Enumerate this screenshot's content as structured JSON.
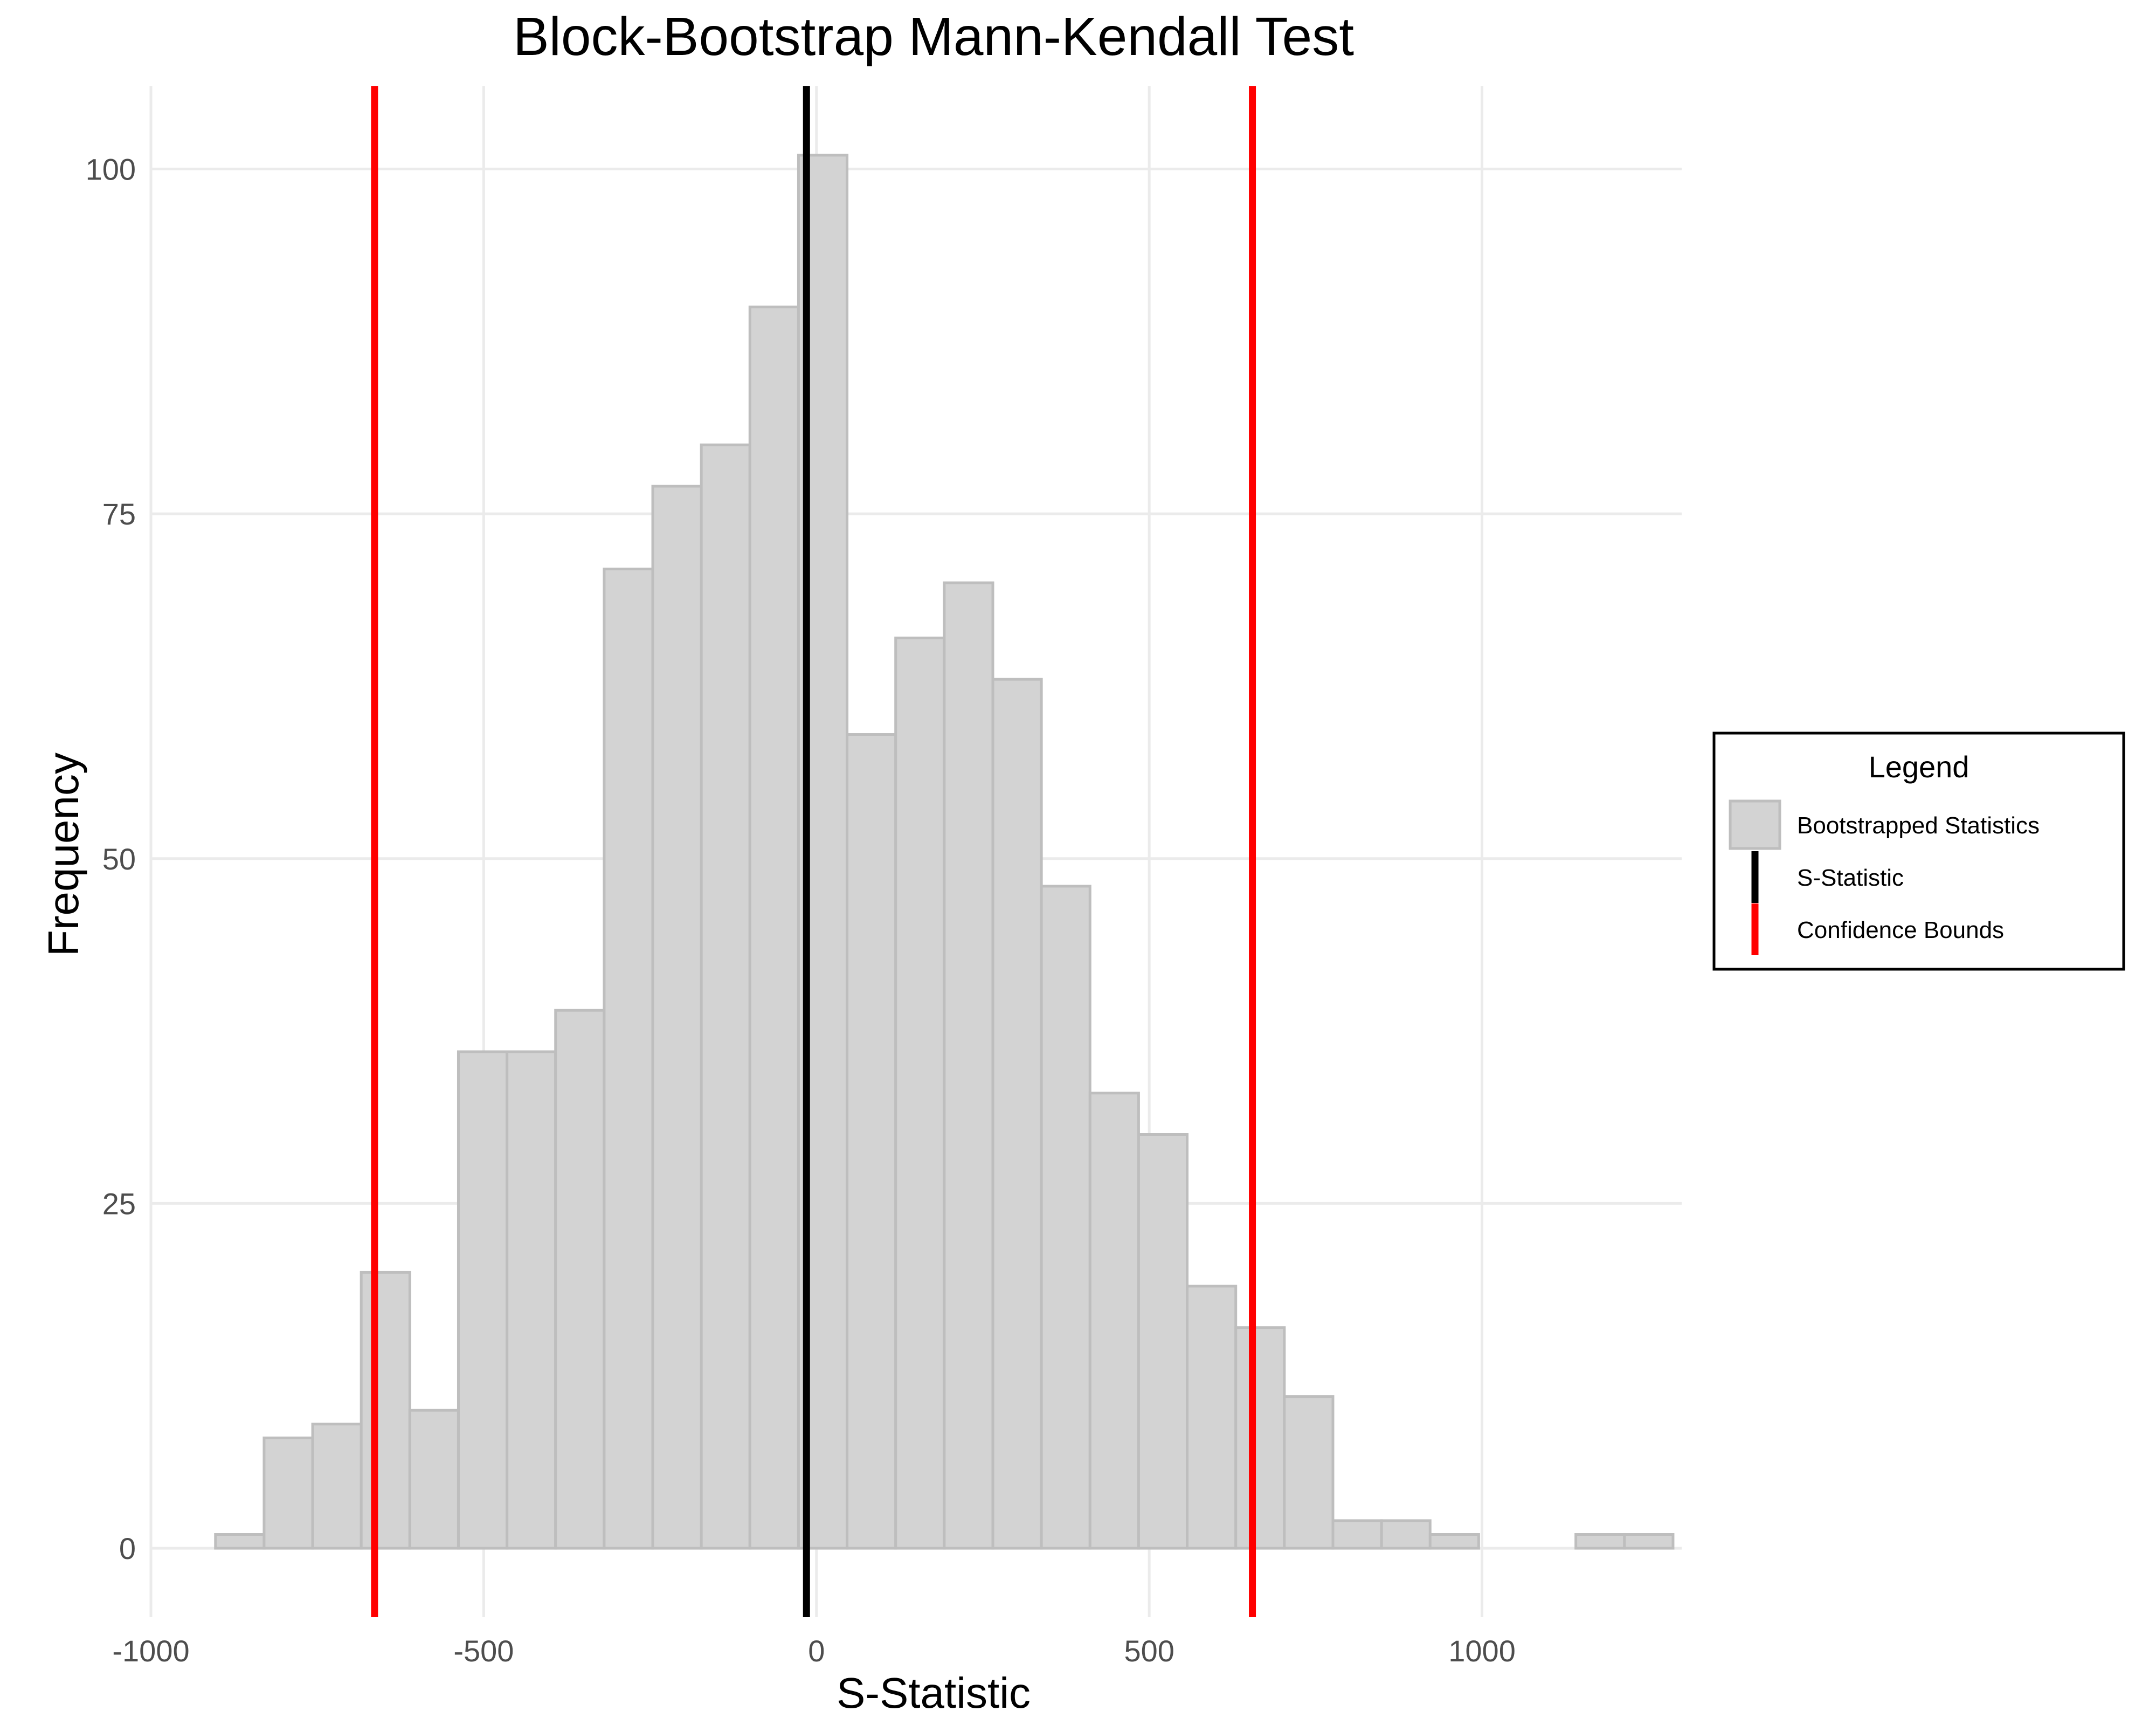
{
  "chart_data": {
    "type": "bar",
    "title": "Block-Bootstrap Mann-Kendall Test",
    "xlabel": "S-Statistic",
    "ylabel": "Frequency",
    "xlim": [
      -1000,
      1300
    ],
    "ylim": [
      -5,
      106
    ],
    "x_ticks": [
      -1000,
      -500,
      0,
      500,
      1000
    ],
    "y_ticks": [
      0,
      25,
      50,
      75,
      100
    ],
    "grid": true,
    "bin_width": 72.9,
    "bins": [
      {
        "start": -903,
        "end": -830,
        "count": 1
      },
      {
        "start": -830,
        "end": -757,
        "count": 8
      },
      {
        "start": -757,
        "end": -684,
        "count": 9
      },
      {
        "start": -684,
        "end": -611,
        "count": 20
      },
      {
        "start": -611,
        "end": -538,
        "count": 10
      },
      {
        "start": -538,
        "end": -465,
        "count": 36
      },
      {
        "start": -465,
        "end": -392,
        "count": 36
      },
      {
        "start": -392,
        "end": -319,
        "count": 39
      },
      {
        "start": -319,
        "end": -246,
        "count": 71
      },
      {
        "start": -246,
        "end": -173,
        "count": 77
      },
      {
        "start": -173,
        "end": -100,
        "count": 80
      },
      {
        "start": -100,
        "end": -27,
        "count": 90
      },
      {
        "start": -27,
        "end": 46,
        "count": 101
      },
      {
        "start": 46,
        "end": 119,
        "count": 59
      },
      {
        "start": 119,
        "end": 192,
        "count": 66
      },
      {
        "start": 192,
        "end": 265,
        "count": 70
      },
      {
        "start": 265,
        "end": 338,
        "count": 63
      },
      {
        "start": 338,
        "end": 411,
        "count": 48
      },
      {
        "start": 411,
        "end": 484,
        "count": 33
      },
      {
        "start": 484,
        "end": 557,
        "count": 30
      },
      {
        "start": 557,
        "end": 630,
        "count": 19
      },
      {
        "start": 630,
        "end": 703,
        "count": 16
      },
      {
        "start": 703,
        "end": 776,
        "count": 11
      },
      {
        "start": 776,
        "end": 849,
        "count": 2
      },
      {
        "start": 849,
        "end": 922,
        "count": 2
      },
      {
        "start": 922,
        "end": 995,
        "count": 1
      },
      {
        "start": 995,
        "end": 1068,
        "count": 0
      },
      {
        "start": 1068,
        "end": 1141,
        "count": 0
      },
      {
        "start": 1141,
        "end": 1214,
        "count": 1
      },
      {
        "start": 1214,
        "end": 1287,
        "count": 1
      }
    ],
    "s_statistic": -15,
    "confidence_bounds": [
      -664,
      655
    ],
    "legend": {
      "title": "Legend",
      "placement": "right",
      "entries": [
        {
          "label": "Bootstrapped Statistics",
          "kind": "fill",
          "color": "#d3d3d3"
        },
        {
          "label": "S-Statistic",
          "kind": "line",
          "color": "#000000"
        },
        {
          "label": "Confidence Bounds",
          "kind": "line",
          "color": "#ff0000"
        }
      ]
    },
    "colors": {
      "bar_fill": "#d3d3d3",
      "bar_outline": "#bebebe",
      "s_statistic": "#000000",
      "confidence_bounds": "#ff0000"
    }
  }
}
